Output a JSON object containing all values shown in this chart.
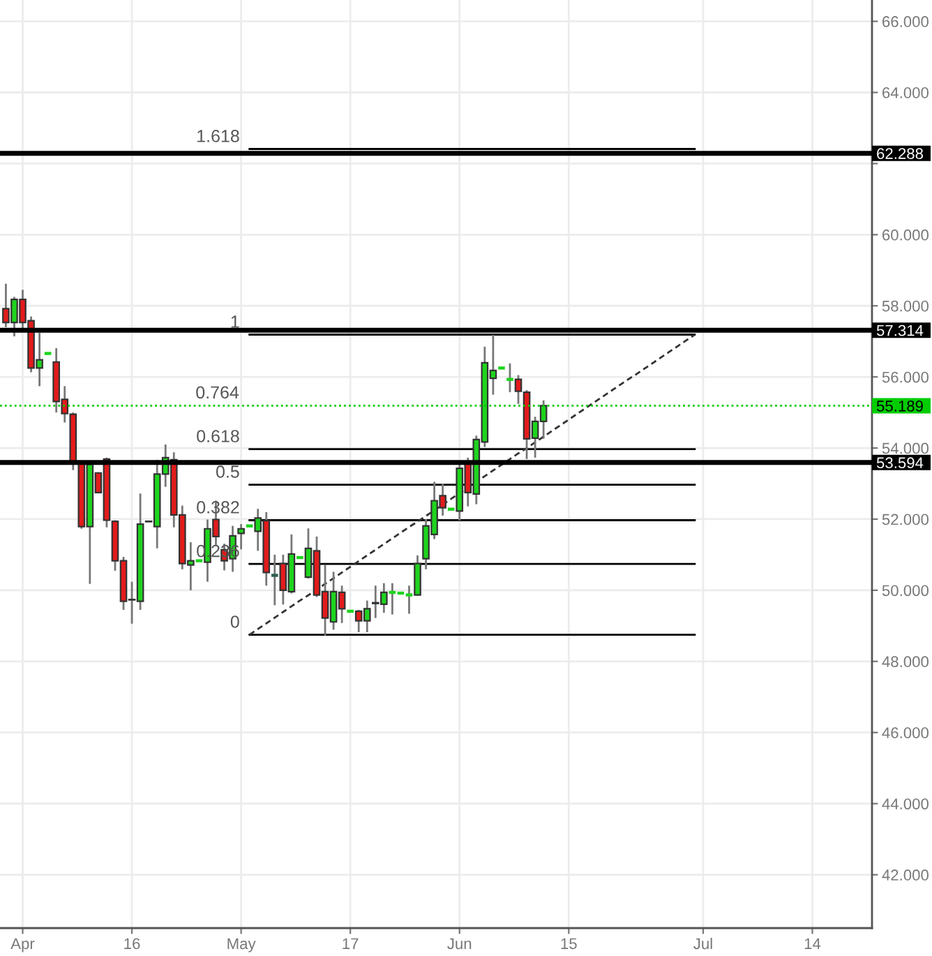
{
  "chart_data": {
    "type": "candlestick",
    "categories": [
      null,
      null,
      "Apr",
      null,
      null,
      null,
      null,
      null,
      null,
      null,
      null,
      null,
      null,
      null,
      null,
      "16",
      null,
      null,
      null,
      null,
      null,
      null,
      null,
      null,
      null,
      null,
      null,
      null,
      "May",
      null,
      null,
      null,
      null,
      null,
      null,
      null,
      null,
      null,
      null,
      null,
      null,
      "17",
      null,
      null,
      null,
      null,
      null,
      null,
      null,
      null,
      null,
      null,
      null,
      null,
      "Jun",
      null,
      null,
      null,
      null,
      null,
      null,
      null,
      null,
      null,
      null,
      null,
      null,
      "15",
      null,
      null,
      null,
      null,
      null,
      null,
      null,
      null,
      null,
      null,
      null,
      null,
      null,
      null,
      null,
      "Jul",
      null,
      null,
      null,
      null,
      null,
      null,
      null,
      null,
      null,
      null,
      null,
      null,
      "14",
      null,
      null,
      null,
      null,
      null,
      null,
      null
    ],
    "ohlc": [
      [
        57.92,
        58.62,
        57.4,
        57.53
      ],
      [
        57.53,
        58.25,
        57.14,
        58.18
      ],
      [
        58.18,
        58.45,
        57.29,
        57.53
      ],
      [
        57.58,
        57.7,
        56.13,
        56.25
      ],
      [
        56.25,
        57.24,
        55.74,
        56.48
      ],
      [
        56.66,
        56.66,
        56.66,
        56.66
      ],
      [
        56.42,
        56.81,
        55.0,
        55.31
      ],
      [
        55.37,
        55.74,
        54.72,
        54.97
      ],
      [
        54.95,
        55.0,
        53.38,
        53.56
      ],
      [
        53.56,
        53.6,
        51.73,
        51.79
      ],
      [
        51.79,
        53.6,
        50.18,
        53.54
      ],
      [
        53.3,
        53.32,
        52.73,
        52.75
      ],
      [
        53.69,
        53.73,
        51.77,
        51.97
      ],
      [
        51.94,
        51.97,
        50.55,
        50.83
      ],
      [
        50.83,
        50.94,
        49.45,
        49.69
      ],
      [
        49.74,
        50.24,
        49.06,
        49.73
      ],
      [
        49.69,
        52.72,
        49.45,
        51.86
      ],
      [
        51.94,
        51.94,
        51.93,
        51.93
      ],
      [
        51.79,
        53.67,
        51.18,
        53.27
      ],
      [
        53.27,
        54.1,
        52.91,
        53.73
      ],
      [
        53.67,
        53.88,
        51.77,
        52.12
      ],
      [
        52.12,
        52.38,
        50.59,
        50.75
      ],
      [
        50.71,
        51.35,
        50.0,
        50.83
      ],
      [
        50.83,
        50.83,
        50.83,
        50.83
      ],
      [
        50.79,
        51.99,
        50.24,
        51.73
      ],
      [
        51.99,
        52.52,
        51.24,
        51.51
      ],
      [
        51.14,
        51.31,
        50.56,
        50.83
      ],
      [
        50.89,
        51.81,
        50.52,
        51.53
      ],
      [
        51.6,
        51.86,
        51.15,
        51.73
      ],
      [
        51.81,
        51.81,
        51.81,
        51.81
      ],
      [
        51.66,
        52.29,
        51.11,
        52.03
      ],
      [
        51.96,
        52.2,
        50.13,
        50.5
      ],
      [
        50.42,
        51.0,
        49.58,
        50.42
      ],
      [
        50.75,
        51.0,
        49.6,
        50.0
      ],
      [
        49.96,
        51.57,
        49.91,
        51.02
      ],
      [
        50.92,
        50.92,
        50.92,
        50.92
      ],
      [
        50.37,
        51.74,
        50.33,
        51.18
      ],
      [
        51.11,
        51.51,
        49.81,
        49.87
      ],
      [
        49.96,
        50.72,
        48.73,
        49.22
      ],
      [
        49.11,
        50.52,
        48.89,
        49.96
      ],
      [
        49.94,
        50.13,
        49.08,
        49.48
      ],
      [
        49.41,
        49.41,
        49.41,
        49.41
      ],
      [
        49.41,
        49.45,
        48.82,
        49.14
      ],
      [
        49.14,
        49.71,
        48.82,
        49.48
      ],
      [
        49.65,
        50.13,
        49.22,
        49.63
      ],
      [
        49.61,
        50.2,
        49.37,
        49.94
      ],
      [
        49.94,
        50.2,
        49.32,
        49.94
      ],
      [
        49.92,
        49.92,
        49.92,
        49.92
      ],
      [
        49.87,
        50.13,
        49.34,
        49.87
      ],
      [
        49.87,
        50.98,
        49.85,
        50.75
      ],
      [
        50.89,
        52.0,
        50.59,
        51.81
      ],
      [
        51.57,
        53.05,
        51.44,
        52.52
      ],
      [
        52.66,
        53.0,
        52.1,
        52.32
      ],
      [
        52.28,
        52.28,
        52.28,
        52.28
      ],
      [
        52.23,
        53.6,
        51.96,
        53.43
      ],
      [
        53.58,
        53.73,
        52.36,
        52.75
      ],
      [
        52.71,
        54.35,
        52.42,
        54.24
      ],
      [
        54.17,
        56.85,
        54.03,
        56.4
      ],
      [
        55.96,
        57.19,
        55.5,
        56.18
      ],
      [
        56.25,
        56.25,
        56.25,
        56.25
      ],
      [
        55.93,
        56.38,
        55.57,
        55.93
      ],
      [
        55.93,
        56.05,
        55.24,
        55.6
      ],
      [
        55.57,
        55.63,
        53.69,
        54.26
      ],
      [
        54.28,
        54.88,
        53.73,
        54.75
      ],
      [
        54.75,
        55.34,
        54.26,
        55.19
      ],
      null,
      null,
      null,
      null,
      null,
      null,
      null,
      null,
      null,
      null,
      null,
      null,
      null,
      null,
      null,
      null,
      null,
      null,
      null,
      null,
      null,
      null,
      null,
      null,
      null,
      null,
      null,
      null,
      null,
      null,
      null,
      null,
      null,
      null,
      null,
      null,
      null,
      null,
      null
    ],
    "colors": [
      "#e31b1b",
      "#1ed41e",
      "#e31b1b",
      "#e31b1b",
      "#1ed41e",
      "#1ed41e",
      "#e31b1b",
      "#e31b1b",
      "#e31b1b",
      "#e31b1b",
      "#1ed41e",
      "#e31b1b",
      "#e31b1b",
      "#e31b1b",
      "#e31b1b",
      "#e31b1b",
      "#1ed41e",
      "#e31b1b",
      "#1ed41e",
      "#1ed41e",
      "#e31b1b",
      "#e31b1b",
      "#1ed41e",
      "#1ed41e",
      "#1ed41e",
      "#e31b1b",
      "#e31b1b",
      "#1ed41e",
      "#1ed41e",
      "#1ed41e",
      "#1ed41e",
      "#e31b1b",
      "#2f5f4f",
      "#e31b1b",
      "#1ed41e",
      "#1ed41e",
      "#1ed41e",
      "#e31b1b",
      "#e31b1b",
      "#1ed41e",
      "#e31b1b",
      "#1ed41e",
      "#e31b1b",
      "#1ed41e",
      "#e31b1b",
      "#1ed41e",
      "#1ed41e",
      "#1ed41e",
      "#1ed41e",
      "#1ed41e",
      "#1ed41e",
      "#1ed41e",
      "#e31b1b",
      "#1ed41e",
      "#1ed41e",
      "#e31b1b",
      "#1ed41e",
      "#1ed41e",
      "#1ed41e",
      "#1ed41e",
      "#1ed41e",
      "#e31b1b",
      "#e31b1b",
      "#1ed41e",
      "#1ed41e",
      null,
      null,
      null,
      null,
      null,
      null,
      null,
      null,
      null,
      null,
      null,
      null,
      null,
      null,
      null,
      null,
      null,
      null,
      null,
      null,
      null,
      null,
      null,
      null,
      null,
      null,
      null,
      null,
      null,
      null,
      null,
      null,
      null,
      null,
      null,
      null,
      null,
      null,
      null
    ],
    "ylim": [
      40.5,
      66.6
    ],
    "yticks": [
      {
        "value": 42,
        "label": "42.000"
      },
      {
        "value": 44,
        "label": "44.000"
      },
      {
        "value": 46,
        "label": "46.000"
      },
      {
        "value": 48,
        "label": "48.000"
      },
      {
        "value": 50,
        "label": "50.000"
      },
      {
        "value": 52,
        "label": "52.000"
      },
      {
        "value": 54,
        "label": "54.000"
      },
      {
        "value": 56,
        "label": "56.000"
      },
      {
        "value": 58,
        "label": "58.000"
      },
      {
        "value": 60,
        "label": "60.000"
      },
      {
        "value": 62,
        "label": null
      },
      {
        "value": 64,
        "label": "64.000"
      },
      {
        "value": 66,
        "label": "66.000"
      }
    ],
    "grid": true,
    "series": [
      {
        "name": "0",
        "type": "line",
        "color": "#000000",
        "values": [
          null,
          null,
          null,
          null,
          null,
          null,
          null,
          null,
          null,
          null,
          null,
          null,
          null,
          null,
          null,
          null,
          null,
          null,
          null,
          null,
          null,
          null,
          null,
          null,
          null,
          null,
          null,
          null,
          null,
          48.75,
          48.75,
          48.75,
          48.75,
          48.75,
          48.75,
          48.75,
          48.75,
          48.75,
          48.75,
          48.75,
          48.75,
          48.75,
          48.75,
          48.75,
          48.75,
          48.75,
          48.75,
          48.75,
          48.75,
          48.75,
          48.75,
          48.75,
          48.75,
          48.75,
          48.75,
          48.75,
          48.75,
          48.75,
          48.75,
          48.75,
          48.75,
          48.75,
          48.75,
          48.75,
          48.75,
          48.75,
          48.75,
          48.75,
          48.75,
          48.75,
          48.75,
          48.75,
          48.75,
          48.75,
          48.75,
          48.75,
          48.75,
          48.75,
          48.75,
          48.75,
          48.75,
          48.75,
          48.75,
          null,
          null,
          null,
          null,
          null,
          null,
          null,
          null,
          null,
          null,
          null,
          null,
          null,
          null,
          null,
          null,
          null,
          null,
          null,
          null,
          null
        ]
      },
      {
        "name": "0.236",
        "type": "line",
        "color": "#000000",
        "values": [
          null,
          null,
          null,
          null,
          null,
          null,
          null,
          null,
          null,
          null,
          null,
          null,
          null,
          null,
          null,
          null,
          null,
          null,
          null,
          null,
          null,
          null,
          null,
          null,
          null,
          null,
          null,
          null,
          null,
          50.74,
          50.74,
          50.74,
          50.74,
          50.74,
          50.74,
          50.74,
          50.74,
          50.74,
          50.74,
          50.74,
          50.74,
          50.74,
          50.74,
          50.74,
          50.74,
          50.74,
          50.74,
          50.74,
          50.74,
          50.74,
          50.74,
          50.74,
          50.74,
          50.74,
          50.74,
          50.74,
          50.74,
          50.74,
          50.74,
          50.74,
          50.74,
          50.74,
          50.74,
          50.74,
          50.74,
          50.74,
          50.74,
          50.74,
          50.74,
          50.74,
          50.74,
          50.74,
          50.74,
          50.74,
          50.74,
          50.74,
          50.74,
          50.74,
          50.74,
          50.74,
          50.74,
          50.74,
          50.74,
          null,
          null,
          null,
          null,
          null,
          null,
          null,
          null,
          null,
          null,
          null,
          null,
          null,
          null,
          null,
          null,
          null,
          null,
          null,
          null,
          null
        ]
      },
      {
        "name": "0.382",
        "type": "line",
        "color": "#000000",
        "values": [
          null,
          null,
          null,
          null,
          null,
          null,
          null,
          null,
          null,
          null,
          null,
          null,
          null,
          null,
          null,
          null,
          null,
          null,
          null,
          null,
          null,
          null,
          null,
          null,
          null,
          null,
          null,
          null,
          null,
          51.97,
          51.97,
          51.97,
          51.97,
          51.97,
          51.97,
          51.97,
          51.97,
          51.97,
          51.97,
          51.97,
          51.97,
          51.97,
          51.97,
          51.97,
          51.97,
          51.97,
          51.97,
          51.97,
          51.97,
          51.97,
          51.97,
          51.97,
          51.97,
          51.97,
          51.97,
          51.97,
          51.97,
          51.97,
          51.97,
          51.97,
          51.97,
          51.97,
          51.97,
          51.97,
          51.97,
          51.97,
          51.97,
          51.97,
          51.97,
          51.97,
          51.97,
          51.97,
          51.97,
          51.97,
          51.97,
          51.97,
          51.97,
          51.97,
          51.97,
          51.97,
          51.97,
          51.97,
          51.97,
          null,
          null,
          null,
          null,
          null,
          null,
          null,
          null,
          null,
          null,
          null,
          null,
          null,
          null,
          null,
          null,
          null,
          null,
          null,
          null,
          null
        ]
      },
      {
        "name": "0.5",
        "type": "line",
        "color": "#000000",
        "values": [
          null,
          null,
          null,
          null,
          null,
          null,
          null,
          null,
          null,
          null,
          null,
          null,
          null,
          null,
          null,
          null,
          null,
          null,
          null,
          null,
          null,
          null,
          null,
          null,
          null,
          null,
          null,
          null,
          null,
          52.97,
          52.97,
          52.97,
          52.97,
          52.97,
          52.97,
          52.97,
          52.97,
          52.97,
          52.97,
          52.97,
          52.97,
          52.97,
          52.97,
          52.97,
          52.97,
          52.97,
          52.97,
          52.97,
          52.97,
          52.97,
          52.97,
          52.97,
          52.97,
          52.97,
          52.97,
          52.97,
          52.97,
          52.97,
          52.97,
          52.97,
          52.97,
          52.97,
          52.97,
          52.97,
          52.97,
          52.97,
          52.97,
          52.97,
          52.97,
          52.97,
          52.97,
          52.97,
          52.97,
          52.97,
          52.97,
          52.97,
          52.97,
          52.97,
          52.97,
          52.97,
          52.97,
          52.97,
          52.97,
          null,
          null,
          null,
          null,
          null,
          null,
          null,
          null,
          null,
          null,
          null,
          null,
          null,
          null,
          null,
          null,
          null,
          null,
          null,
          null,
          null
        ]
      },
      {
        "name": "0.618",
        "type": "line",
        "color": "#000000",
        "values": [
          null,
          null,
          null,
          null,
          null,
          null,
          null,
          null,
          null,
          null,
          null,
          null,
          null,
          null,
          null,
          null,
          null,
          null,
          null,
          null,
          null,
          null,
          null,
          null,
          null,
          null,
          null,
          null,
          null,
          53.97,
          53.97,
          53.97,
          53.97,
          53.97,
          53.97,
          53.97,
          53.97,
          53.97,
          53.97,
          53.97,
          53.97,
          53.97,
          53.97,
          53.97,
          53.97,
          53.97,
          53.97,
          53.97,
          53.97,
          53.97,
          53.97,
          53.97,
          53.97,
          53.97,
          53.97,
          53.97,
          53.97,
          53.97,
          53.97,
          53.97,
          53.97,
          53.97,
          53.97,
          53.97,
          53.97,
          53.97,
          53.97,
          53.97,
          53.97,
          53.97,
          53.97,
          53.97,
          53.97,
          53.97,
          53.97,
          53.97,
          53.97,
          53.97,
          53.97,
          53.97,
          53.97,
          53.97,
          53.97,
          null,
          null,
          null,
          null,
          null,
          null,
          null,
          null,
          null,
          null,
          null,
          null,
          null,
          null,
          null,
          null,
          null,
          null,
          null,
          null,
          null
        ]
      },
      {
        "name": "1",
        "type": "line",
        "color": "#000000",
        "values": [
          null,
          null,
          null,
          null,
          null,
          null,
          null,
          null,
          null,
          null,
          null,
          null,
          null,
          null,
          null,
          null,
          null,
          null,
          null,
          null,
          null,
          null,
          null,
          null,
          null,
          null,
          null,
          null,
          null,
          57.19,
          57.19,
          57.19,
          57.19,
          57.19,
          57.19,
          57.19,
          57.19,
          57.19,
          57.19,
          57.19,
          57.19,
          57.19,
          57.19,
          57.19,
          57.19,
          57.19,
          57.19,
          57.19,
          57.19,
          57.19,
          57.19,
          57.19,
          57.19,
          57.19,
          57.19,
          57.19,
          57.19,
          57.19,
          57.19,
          57.19,
          57.19,
          57.19,
          57.19,
          57.19,
          57.19,
          57.19,
          57.19,
          57.19,
          57.19,
          57.19,
          57.19,
          57.19,
          57.19,
          57.19,
          57.19,
          57.19,
          57.19,
          57.19,
          57.19,
          57.19,
          57.19,
          57.19,
          57.19,
          null,
          null,
          null,
          null,
          null,
          null,
          null,
          null,
          null,
          null,
          null,
          null,
          null,
          null,
          null,
          null,
          null,
          null,
          null,
          null,
          null
        ]
      },
      {
        "name": "1.618",
        "type": "line",
        "color": "#000000",
        "values": [
          null,
          null,
          null,
          null,
          null,
          null,
          null,
          null,
          null,
          null,
          null,
          null,
          null,
          null,
          null,
          null,
          null,
          null,
          null,
          null,
          null,
          null,
          null,
          null,
          null,
          null,
          null,
          null,
          null,
          62.41,
          62.41,
          62.41,
          62.41,
          62.41,
          62.41,
          62.41,
          62.41,
          62.41,
          62.41,
          62.41,
          62.41,
          62.41,
          62.41,
          62.41,
          62.41,
          62.41,
          62.41,
          62.41,
          62.41,
          62.41,
          62.41,
          62.41,
          62.41,
          62.41,
          62.41,
          62.41,
          62.41,
          62.41,
          62.41,
          62.41,
          62.41,
          62.41,
          62.41,
          62.41,
          62.41,
          62.41,
          62.41,
          62.41,
          62.41,
          62.41,
          62.41,
          62.41,
          62.41,
          62.41,
          62.41,
          62.41,
          62.41,
          62.41,
          62.41,
          62.41,
          62.41,
          62.41,
          62.41,
          null,
          null,
          null,
          null,
          null,
          null,
          null,
          null,
          null,
          null,
          null,
          null,
          null,
          null,
          null,
          null,
          null,
          null,
          null,
          null,
          null
        ]
      },
      {
        "type": "line",
        "color": "#333333",
        "line_style": "dashed",
        "values": [
          null,
          null,
          null,
          null,
          null,
          null,
          null,
          null,
          null,
          null,
          null,
          null,
          null,
          null,
          null,
          null,
          null,
          null,
          null,
          null,
          null,
          null,
          null,
          null,
          null,
          null,
          null,
          null,
          null,
          48.75,
          48.91,
          49.07,
          49.23,
          49.39,
          49.55,
          49.71,
          49.86,
          50.02,
          50.18,
          50.34,
          50.5,
          50.66,
          50.82,
          50.98,
          51.14,
          51.3,
          51.46,
          51.62,
          51.78,
          51.93,
          52.09,
          52.25,
          52.41,
          52.57,
          52.73,
          52.89,
          53.05,
          53.21,
          53.37,
          53.53,
          53.69,
          53.85,
          54.0,
          54.16,
          54.32,
          54.48,
          54.64,
          54.8,
          54.96,
          55.12,
          55.28,
          55.44,
          55.6,
          55.76,
          55.92,
          56.07,
          56.23,
          56.39,
          56.55,
          56.71,
          56.87,
          57.03,
          57.19,
          null,
          null,
          null,
          null,
          null,
          null,
          null,
          null,
          null,
          null,
          null,
          null,
          null,
          null,
          null,
          null,
          null,
          null,
          null,
          null,
          null
        ]
      }
    ],
    "ref_lines": [
      {
        "axis": "y",
        "value": 62.288,
        "label": "62.288",
        "color": "#000000"
      },
      {
        "axis": "y",
        "value": 57.314,
        "label": "57.314",
        "color": "#000000"
      },
      {
        "axis": "y",
        "value": 55.189,
        "label": "55.189",
        "color": "#00cc00",
        "line_style": "dotted"
      },
      {
        "axis": "y",
        "value": 53.594,
        "label": "53.594",
        "color": "#000000"
      }
    ],
    "annotations": [
      {
        "text": "0.764",
        "x": "May",
        "y": 55.2
      }
    ]
  }
}
